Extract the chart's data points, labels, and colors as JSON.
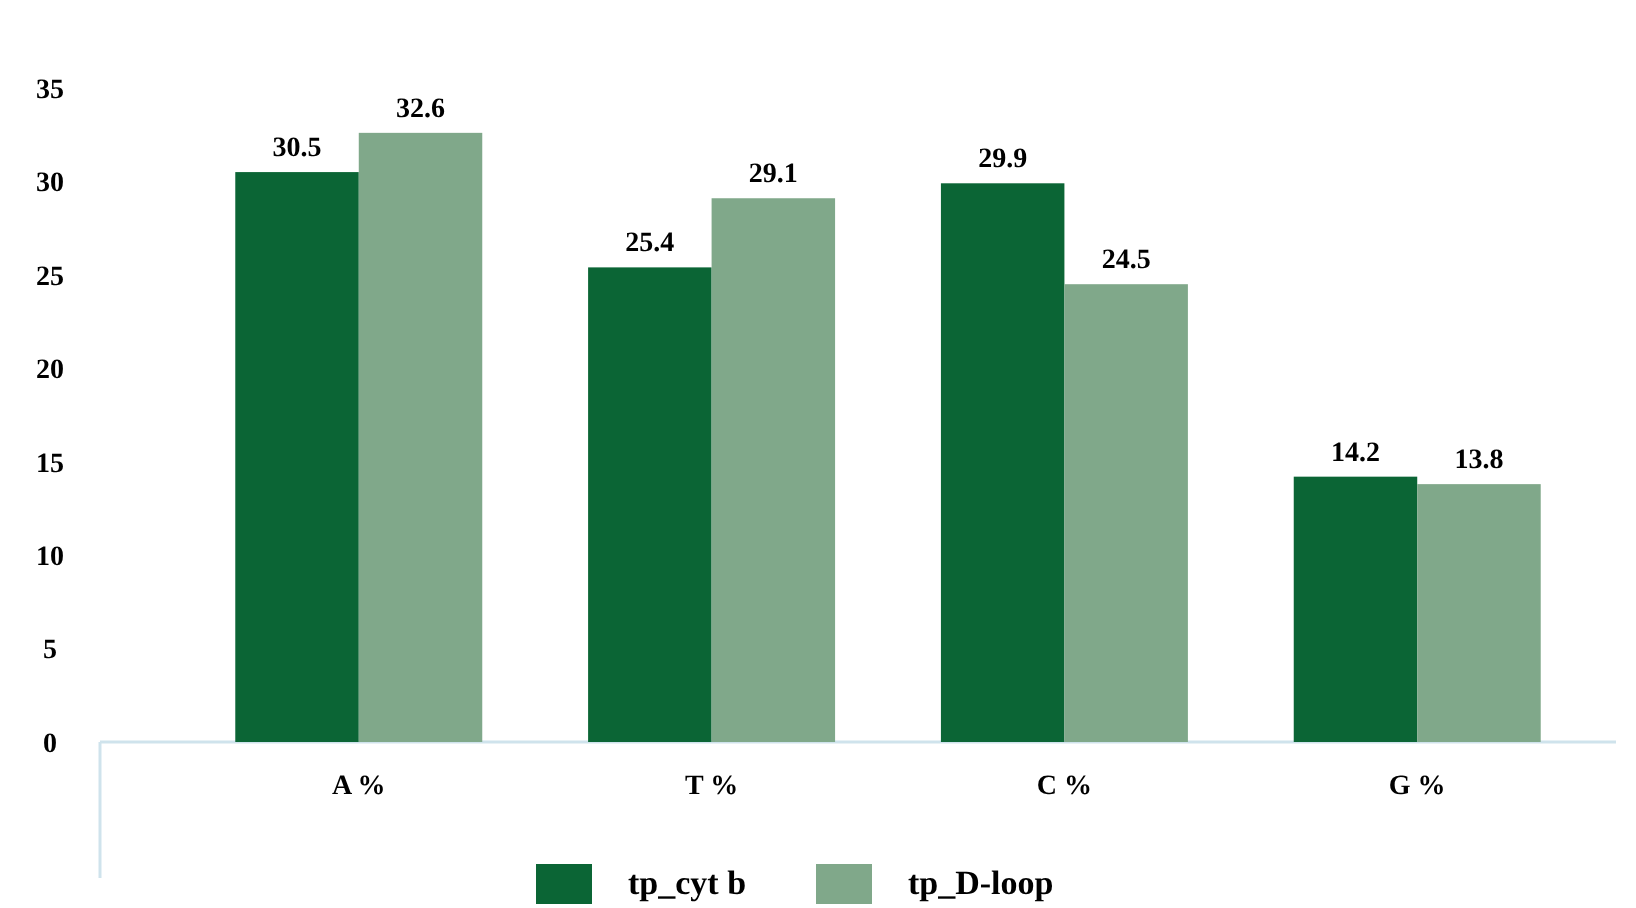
{
  "chart_data": {
    "type": "bar",
    "categories": [
      "A %",
      "T %",
      "C %",
      "G %"
    ],
    "series": [
      {
        "name": "tp_cyt b",
        "color": "#0b6535",
        "values": [
          30.5,
          25.4,
          29.9,
          14.2
        ]
      },
      {
        "name": "tp_D-loop",
        "color": "#80a88a",
        "values": [
          32.6,
          29.1,
          24.5,
          13.8
        ]
      }
    ],
    "ylim": [
      0,
      35
    ],
    "yticks": [
      0,
      5,
      10,
      15,
      20,
      25,
      30,
      35
    ],
    "data_labels": true,
    "legend": "bottom",
    "grid": false
  }
}
